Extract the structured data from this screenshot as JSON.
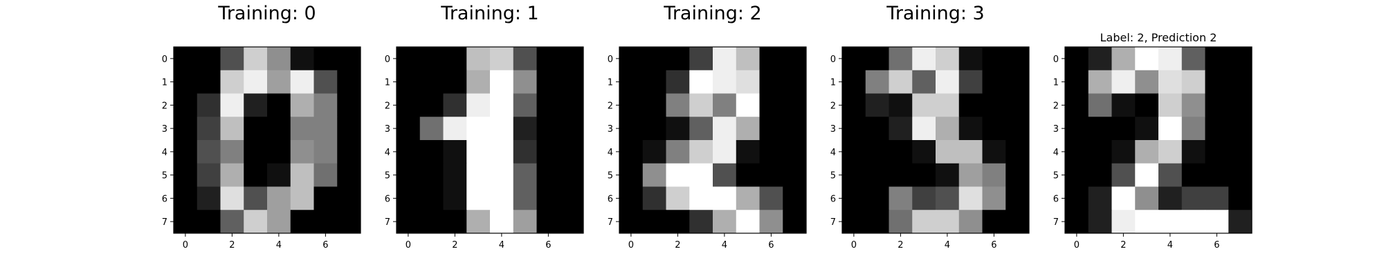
{
  "chart_data": [
    {
      "type": "heatmap",
      "title": "Training: 0",
      "colormap": "gray_r",
      "vmin": 0,
      "vmax": 16,
      "xticks": [
        0,
        2,
        4,
        6
      ],
      "yticks": [
        0,
        1,
        2,
        3,
        4,
        5,
        6,
        7
      ],
      "values": [
        [
          0,
          0,
          5,
          13,
          9,
          1,
          0,
          0
        ],
        [
          0,
          0,
          13,
          15,
          10,
          15,
          5,
          0
        ],
        [
          0,
          3,
          15,
          2,
          0,
          11,
          8,
          0
        ],
        [
          0,
          4,
          12,
          0,
          0,
          8,
          8,
          0
        ],
        [
          0,
          5,
          8,
          0,
          0,
          9,
          8,
          0
        ],
        [
          0,
          4,
          11,
          0,
          1,
          12,
          7,
          0
        ],
        [
          0,
          2,
          14,
          5,
          10,
          12,
          0,
          0
        ],
        [
          0,
          0,
          6,
          13,
          10,
          0,
          0,
          0
        ]
      ]
    },
    {
      "type": "heatmap",
      "title": "Training: 1",
      "colormap": "gray_r",
      "vmin": 0,
      "vmax": 16,
      "xticks": [
        0,
        2,
        4,
        6
      ],
      "yticks": [
        0,
        1,
        2,
        3,
        4,
        5,
        6,
        7
      ],
      "values": [
        [
          0,
          0,
          0,
          12,
          13,
          5,
          0,
          0
        ],
        [
          0,
          0,
          0,
          11,
          16,
          9,
          0,
          0
        ],
        [
          0,
          0,
          3,
          15,
          16,
          6,
          0,
          0
        ],
        [
          0,
          7,
          15,
          16,
          16,
          2,
          0,
          0
        ],
        [
          0,
          0,
          1,
          16,
          16,
          3,
          0,
          0
        ],
        [
          0,
          0,
          1,
          16,
          16,
          6,
          0,
          0
        ],
        [
          0,
          0,
          1,
          16,
          16,
          6,
          0,
          0
        ],
        [
          0,
          0,
          0,
          11,
          16,
          10,
          0,
          0
        ]
      ]
    },
    {
      "type": "heatmap",
      "title": "Training: 2",
      "colormap": "gray_r",
      "vmin": 0,
      "vmax": 16,
      "xticks": [
        0,
        2,
        4,
        6
      ],
      "yticks": [
        0,
        1,
        2,
        3,
        4,
        5,
        6,
        7
      ],
      "values": [
        [
          0,
          0,
          0,
          4,
          15,
          12,
          0,
          0
        ],
        [
          0,
          0,
          3,
          16,
          15,
          14,
          0,
          0
        ],
        [
          0,
          0,
          8,
          13,
          8,
          16,
          0,
          0
        ],
        [
          0,
          0,
          1,
          6,
          15,
          11,
          0,
          0
        ],
        [
          0,
          1,
          8,
          13,
          15,
          1,
          0,
          0
        ],
        [
          0,
          9,
          16,
          16,
          5,
          0,
          0,
          0
        ],
        [
          0,
          3,
          13,
          16,
          16,
          11,
          5,
          0
        ],
        [
          0,
          0,
          0,
          3,
          11,
          16,
          9,
          0
        ]
      ]
    },
    {
      "type": "heatmap",
      "title": "Training: 3",
      "colormap": "gray_r",
      "vmin": 0,
      "vmax": 16,
      "xticks": [
        0,
        2,
        4,
        6
      ],
      "yticks": [
        0,
        1,
        2,
        3,
        4,
        5,
        6,
        7
      ],
      "values": [
        [
          0,
          0,
          7,
          15,
          13,
          1,
          0,
          0
        ],
        [
          0,
          8,
          13,
          6,
          15,
          4,
          0,
          0
        ],
        [
          0,
          2,
          1,
          13,
          13,
          0,
          0,
          0
        ],
        [
          0,
          0,
          2,
          15,
          11,
          1,
          0,
          0
        ],
        [
          0,
          0,
          0,
          1,
          12,
          12,
          1,
          0
        ],
        [
          0,
          0,
          0,
          0,
          1,
          10,
          8,
          0
        ],
        [
          0,
          0,
          8,
          4,
          5,
          14,
          9,
          0
        ],
        [
          0,
          0,
          7,
          13,
          13,
          9,
          0,
          0
        ]
      ]
    },
    {
      "type": "heatmap",
      "title": "Label: 2, Prediction 2",
      "colormap": "gray_r",
      "vmin": 0,
      "vmax": 16,
      "xticks": [
        0,
        2,
        4,
        6
      ],
      "yticks": [
        0,
        1,
        2,
        3,
        4,
        5,
        6,
        7
      ],
      "values": [
        [
          0,
          2,
          11,
          16,
          15,
          6,
          0,
          0
        ],
        [
          0,
          11,
          15,
          9,
          14,
          13,
          0,
          0
        ],
        [
          0,
          7,
          1,
          0,
          13,
          9,
          0,
          0
        ],
        [
          0,
          0,
          0,
          1,
          16,
          8,
          0,
          0
        ],
        [
          0,
          0,
          1,
          11,
          13,
          1,
          0,
          0
        ],
        [
          0,
          0,
          5,
          16,
          5,
          0,
          0,
          0
        ],
        [
          0,
          2,
          16,
          9,
          2,
          4,
          4,
          0
        ],
        [
          0,
          2,
          15,
          16,
          16,
          16,
          16,
          2
        ]
      ]
    }
  ]
}
